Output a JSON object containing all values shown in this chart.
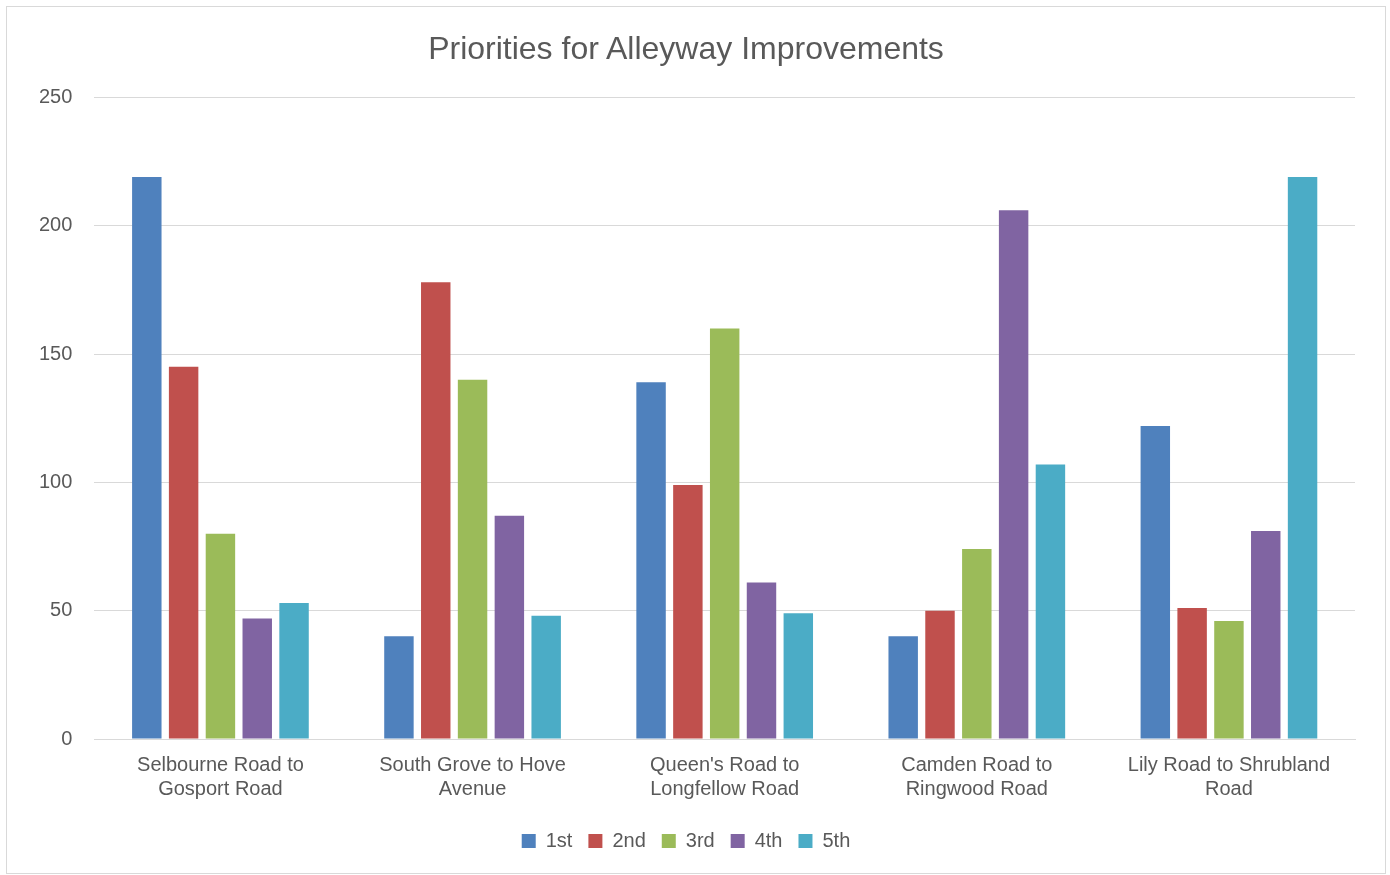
{
  "chart_data": {
    "type": "bar",
    "title": "Priorities for Alleyway Improvements",
    "categories": [
      "Selbourne Road to Gosport Road",
      "South Grove to Hove Avenue",
      "Queen's Road to Longfellow Road",
      "Camden Road to Ringwood Road",
      "Lily Road to Shrubland Road"
    ],
    "series": [
      {
        "name": "1st",
        "color": "#4f81bd",
        "values": [
          219,
          40,
          139,
          40,
          122
        ]
      },
      {
        "name": "2nd",
        "color": "#c0504d",
        "values": [
          145,
          178,
          99,
          50,
          51
        ]
      },
      {
        "name": "3rd",
        "color": "#9bbb59",
        "values": [
          80,
          140,
          160,
          74,
          46
        ]
      },
      {
        "name": "4th",
        "color": "#8064a2",
        "values": [
          47,
          87,
          61,
          206,
          81
        ]
      },
      {
        "name": "5th",
        "color": "#4bacc6",
        "values": [
          53,
          48,
          49,
          107,
          219
        ]
      }
    ],
    "ylim": [
      0,
      250
    ],
    "yticks": [
      0,
      50,
      100,
      150,
      200,
      250
    ],
    "grid": "y",
    "legend": "bottom"
  }
}
